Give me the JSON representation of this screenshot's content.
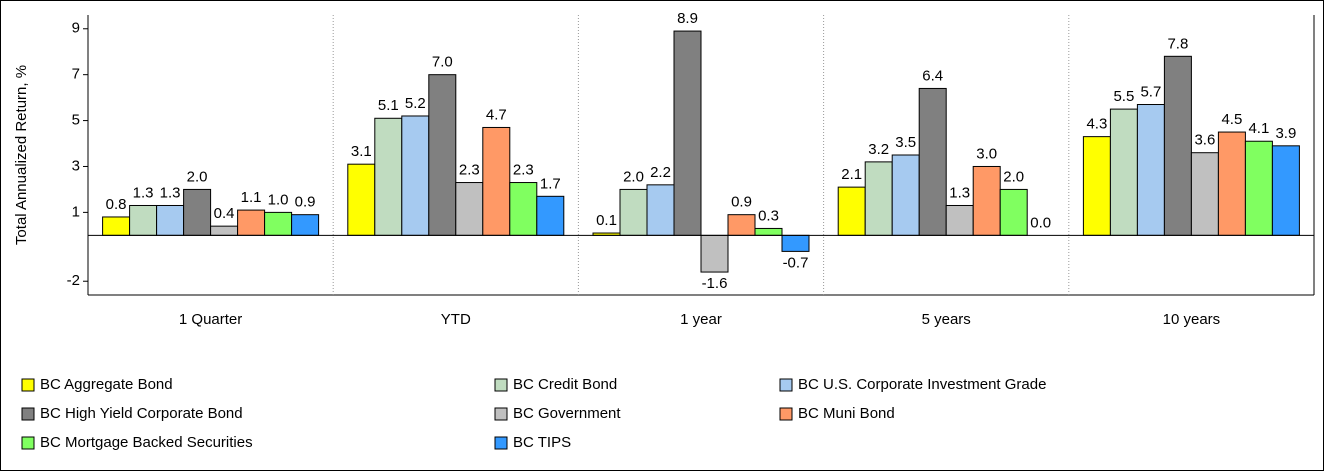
{
  "chart_data": {
    "type": "bar",
    "y_label": "Total Annualized Return, %",
    "categories": [
      "1 Quarter",
      "YTD",
      "1 year",
      "5 years",
      "10 years"
    ],
    "ylim": [
      -2.6,
      9.6
    ],
    "yticks": [
      -2,
      1,
      3,
      5,
      7,
      9
    ],
    "series": [
      {
        "name": "BC Aggregate Bond",
        "color": "#ffff00",
        "values": [
          0.8,
          3.1,
          0.1,
          2.1,
          4.3
        ],
        "value_labels": [
          "0.8",
          "3.1",
          "0.1",
          "2.1",
          "4.3"
        ]
      },
      {
        "name": "BC Credit Bond",
        "color": "#c0dcc0",
        "values": [
          1.3,
          5.1,
          2.0,
          3.2,
          5.5
        ],
        "value_labels": [
          "1.3",
          "5.1",
          "2.0",
          "3.2",
          "5.5"
        ]
      },
      {
        "name": "BC U.S. Corporate Investment Grade",
        "color": "#a6caf0",
        "values": [
          1.3,
          5.2,
          2.2,
          3.5,
          5.7
        ],
        "value_labels": [
          "1.3",
          "5.2",
          "2.2",
          "3.5",
          "5.7"
        ]
      },
      {
        "name": "BC High Yield Corporate Bond",
        "color": "#808080",
        "values": [
          2.0,
          7.0,
          8.9,
          6.4,
          7.8
        ],
        "value_labels": [
          "2.0",
          "7.0",
          "8.9",
          "6.4",
          "7.8"
        ]
      },
      {
        "name": "BC Government",
        "color": "#c0c0c0",
        "values": [
          0.4,
          2.3,
          -1.6,
          1.3,
          3.6
        ],
        "value_labels": [
          "0.4",
          "2.3",
          "-1.6",
          "1.3",
          "3.6"
        ]
      },
      {
        "name": "BC Muni Bond",
        "color": "#ff9966",
        "values": [
          1.1,
          4.7,
          0.9,
          3.0,
          4.5
        ],
        "value_labels": [
          "1.1",
          "4.7",
          "0.9",
          "3.0",
          "4.5"
        ]
      },
      {
        "name": "BC Mortgage Backed Securities",
        "color": "#80ff60",
        "values": [
          1.0,
          2.3,
          0.3,
          2.0,
          4.1
        ],
        "value_labels": [
          "1.0",
          "2.3",
          "0.3",
          "2.0",
          "4.1"
        ]
      },
      {
        "name": "BC TIPS",
        "color": "#3399ff",
        "values": [
          0.9,
          1.7,
          -0.7,
          0.0,
          3.9
        ],
        "value_labels": [
          "0.9",
          "1.7",
          "-0.7",
          "0.0",
          "3.9"
        ]
      }
    ]
  }
}
